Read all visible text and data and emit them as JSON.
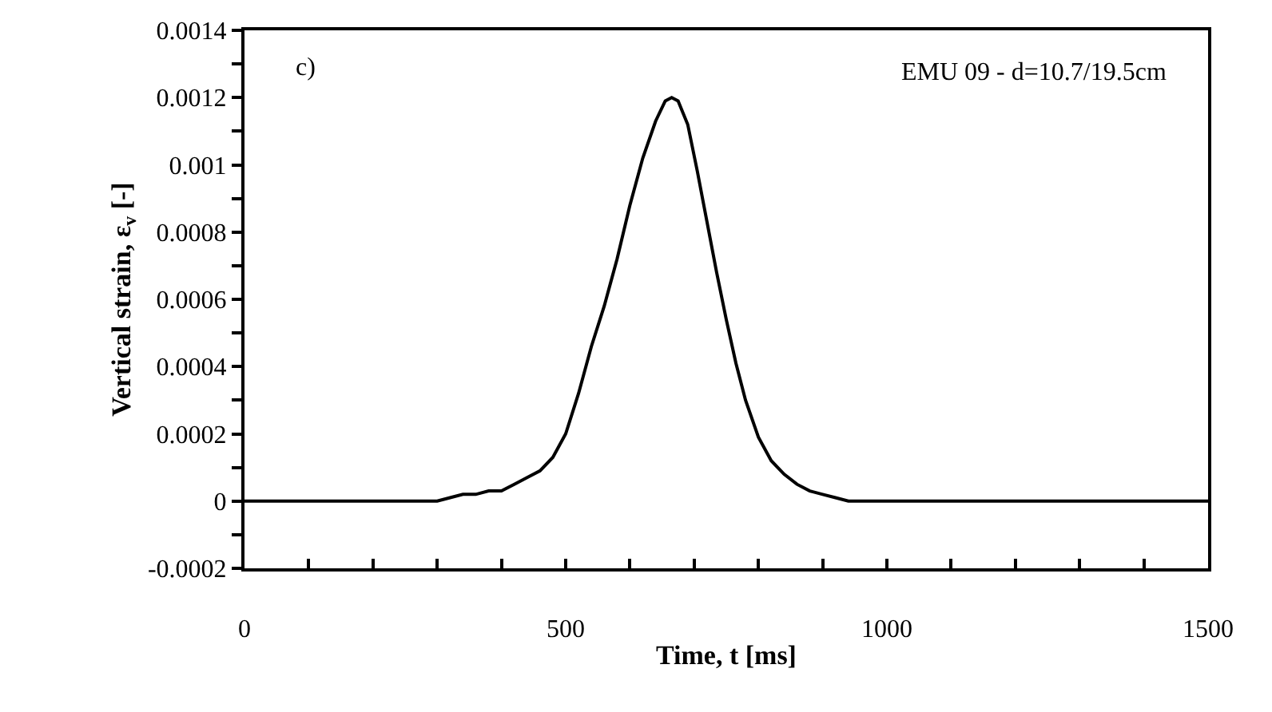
{
  "chart_data": {
    "type": "line",
    "xlabel": "Time, t [ms]",
    "ylabel": "Vertical strain, ε$_{v}$ [-]",
    "annotations": [
      "c)",
      "EMU 09 - d=10.7/19.5cm"
    ],
    "series": [
      {
        "color": "#000000",
        "x": [
          0,
          20,
          40,
          60,
          80,
          100,
          120,
          140,
          160,
          180,
          200,
          220,
          240,
          260,
          280,
          300,
          320,
          340,
          360,
          380,
          400,
          420,
          440,
          460,
          480,
          500,
          520,
          540,
          560,
          580,
          600,
          620,
          640,
          655,
          665,
          675,
          690,
          705,
          720,
          735,
          750,
          765,
          780,
          800,
          820,
          840,
          860,
          880,
          900,
          920,
          940,
          960,
          1000,
          1040,
          1080,
          1120,
          1160,
          1200,
          1240,
          1280,
          1320,
          1360,
          1400,
          1440,
          1480,
          1500
        ],
        "values": [
          0,
          0,
          0,
          0,
          0,
          0,
          0,
          0,
          0,
          0,
          0,
          0,
          0,
          0,
          0,
          0,
          1e-05,
          2e-05,
          2e-05,
          3e-05,
          3e-05,
          5e-05,
          7e-05,
          9e-05,
          0.00013,
          0.0002,
          0.00032,
          0.00046,
          0.00058,
          0.00072,
          0.00088,
          0.00102,
          0.00113,
          0.00119,
          0.0012,
          0.00119,
          0.00112,
          0.00098,
          0.00083,
          0.00068,
          0.00054,
          0.00041,
          0.0003,
          0.00019,
          0.00012,
          8e-05,
          5e-05,
          3e-05,
          2e-05,
          1e-05,
          0,
          0,
          0,
          0,
          0,
          0,
          0,
          0,
          0,
          0,
          0,
          0,
          0,
          0,
          0,
          0
        ]
      }
    ],
    "xlim": [
      0,
      1500
    ],
    "xticks": [
      0,
      {
        "value": 100,
        "label": null
      },
      {
        "value": 200,
        "label": null
      },
      {
        "value": 300,
        "label": null
      },
      {
        "value": 400,
        "label": null
      },
      500,
      {
        "value": 600,
        "label": null
      },
      {
        "value": 700,
        "label": null
      },
      {
        "value": 800,
        "label": null
      },
      {
        "value": 900,
        "label": null
      },
      1000,
      {
        "value": 1100,
        "label": null
      },
      {
        "value": 1200,
        "label": null
      },
      {
        "value": 1300,
        "label": null
      },
      {
        "value": 1400,
        "label": null
      },
      1500
    ],
    "ylim": [
      -0.0002,
      0.0014
    ],
    "yticks": [
      -0.0002,
      {
        "value": -0.0001,
        "label": null
      },
      0,
      {
        "value": 0.0001,
        "label": null
      },
      0.0002,
      {
        "value": 0.0003,
        "label": null
      },
      0.0004,
      {
        "value": 0.0005,
        "label": null
      },
      0.0006,
      {
        "value": 0.0007,
        "label": null
      },
      0.0008,
      {
        "value": 0.0009,
        "label": null
      },
      0.001,
      {
        "value": 0.0011,
        "label": null
      },
      0.0012,
      {
        "value": 0.0013,
        "label": null
      },
      0.0014
    ],
    "marker": "none",
    "line_style": "solid"
  }
}
